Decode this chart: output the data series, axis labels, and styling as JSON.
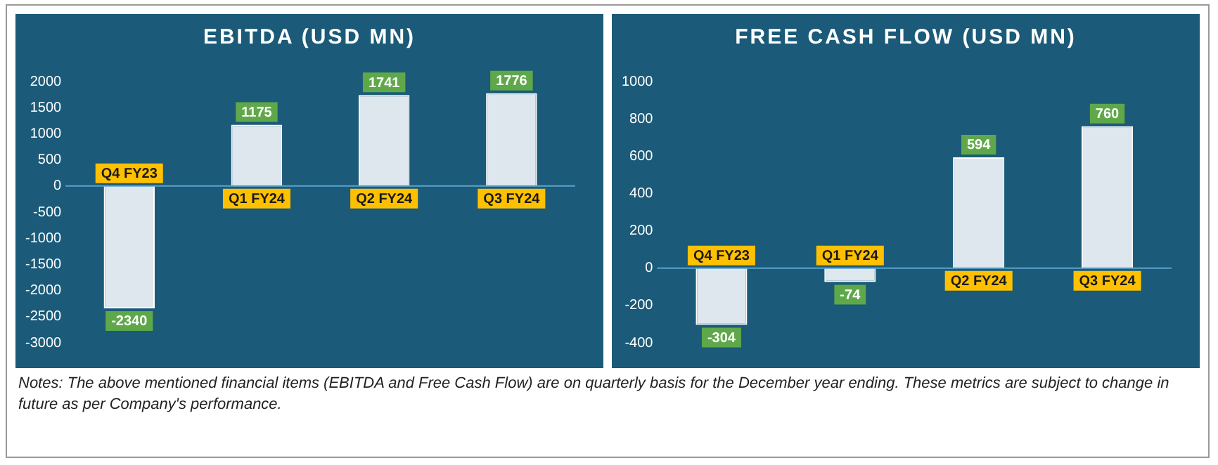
{
  "chart_data": [
    {
      "type": "bar",
      "title": "EBITDA (USD MN)",
      "categories": [
        "Q4 FY23",
        "Q1 FY24",
        "Q2 FY24",
        "Q3 FY24"
      ],
      "values": [
        -2340,
        1175,
        1741,
        1776
      ],
      "color": "#dfe7ee",
      "ylim": [
        -3000,
        2000
      ],
      "yticks": [
        -3000,
        -2500,
        -2000,
        -1500,
        -1000,
        -500,
        0,
        500,
        1000,
        1500,
        2000
      ],
      "data_labels": true,
      "annotations": [
        "Notes: The above mentioned financial items (EBITDA and Free Cash Flow) are on quarterly basis for the December year ending. These metrics are subject to change in future as per Company's performance."
      ]
    },
    {
      "type": "bar",
      "title": "FREE CASH FLOW (USD MN)",
      "categories": [
        "Q4 FY23",
        "Q1 FY24",
        "Q2 FY24",
        "Q3 FY24"
      ],
      "values": [
        -304,
        -74,
        594,
        760
      ],
      "color": "#dfe7ee",
      "ylim": [
        -400,
        1000
      ],
      "yticks": [
        -400,
        -200,
        0,
        200,
        400,
        600,
        800,
        1000
      ],
      "data_labels": true
    }
  ]
}
